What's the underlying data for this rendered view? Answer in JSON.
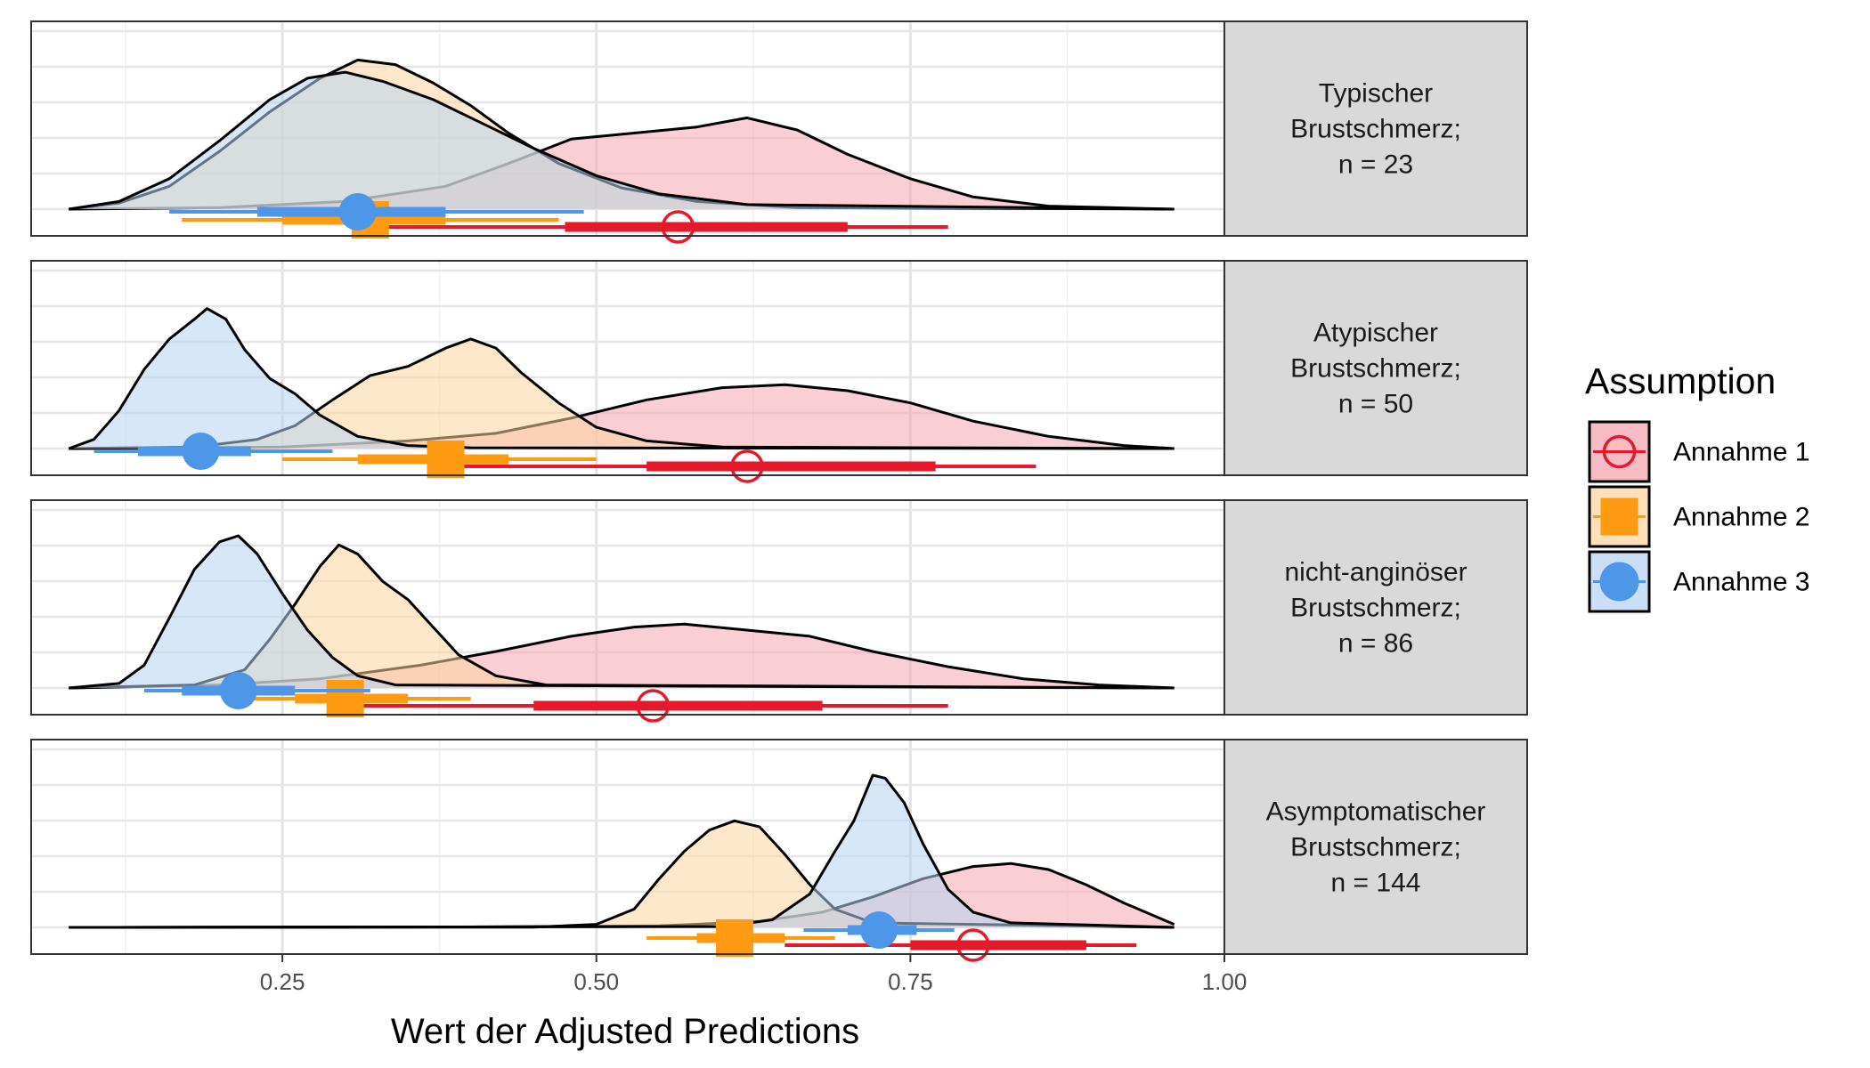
{
  "chart_data": {
    "type": "area",
    "subtype": "faceted half-eye density plot with point intervals",
    "xlabel": "Wert der Adjusted Predictions",
    "ylabel": "",
    "xlim": [
      0.05,
      1.0
    ],
    "x_ticks": [
      0.25,
      0.5,
      0.75,
      1.0
    ],
    "x_tick_labels": [
      "0.25",
      "0.50",
      "0.75",
      "1.00"
    ],
    "grid": true,
    "legend": {
      "title": "Assumption",
      "placement": "right",
      "entries": [
        {
          "label": "Annahme 1",
          "shape": "open-circle",
          "color": "#e41a2a",
          "fill": "#f4a6b0"
        },
        {
          "label": "Annahme 2",
          "shape": "square",
          "color": "#ff9a11",
          "fill": "#fdd6a0"
        },
        {
          "label": "Annahme 3",
          "shape": "circle",
          "color": "#4e96e8",
          "fill": "#b8d4f3"
        }
      ]
    },
    "facets": [
      {
        "label_lines": [
          "Typischer",
          "Brustschmerz;",
          "n = 23"
        ],
        "series": [
          {
            "name": "Annahme 1",
            "median": 0.565,
            "ci66": [
              0.475,
              0.7
            ],
            "ci95": [
              0.32,
              0.78
            ],
            "density": [
              [
                0.08,
                0
              ],
              [
                0.2,
                0.01
              ],
              [
                0.3,
                0.05
              ],
              [
                0.38,
                0.15
              ],
              [
                0.43,
                0.3
              ],
              [
                0.48,
                0.46
              ],
              [
                0.53,
                0.5
              ],
              [
                0.58,
                0.54
              ],
              [
                0.62,
                0.6
              ],
              [
                0.66,
                0.52
              ],
              [
                0.7,
                0.36
              ],
              [
                0.75,
                0.2
              ],
              [
                0.8,
                0.08
              ],
              [
                0.86,
                0.02
              ],
              [
                0.96,
                0
              ]
            ]
          },
          {
            "name": "Annahme 2",
            "median": 0.32,
            "ci66": [
              0.25,
              0.38
            ],
            "ci95": [
              0.17,
              0.47
            ],
            "density": [
              [
                0.08,
                0
              ],
              [
                0.12,
                0.04
              ],
              [
                0.16,
                0.15
              ],
              [
                0.2,
                0.38
              ],
              [
                0.24,
                0.64
              ],
              [
                0.28,
                0.86
              ],
              [
                0.31,
                0.98
              ],
              [
                0.34,
                0.95
              ],
              [
                0.37,
                0.83
              ],
              [
                0.4,
                0.68
              ],
              [
                0.43,
                0.5
              ],
              [
                0.47,
                0.3
              ],
              [
                0.52,
                0.14
              ],
              [
                0.58,
                0.05
              ],
              [
                0.66,
                0.01
              ],
              [
                0.96,
                0
              ]
            ]
          },
          {
            "name": "Annahme 3",
            "median": 0.31,
            "ci66": [
              0.23,
              0.38
            ],
            "ci95": [
              0.16,
              0.49
            ],
            "density": [
              [
                0.08,
                0
              ],
              [
                0.12,
                0.05
              ],
              [
                0.16,
                0.2
              ],
              [
                0.2,
                0.45
              ],
              [
                0.24,
                0.72
              ],
              [
                0.27,
                0.86
              ],
              [
                0.3,
                0.9
              ],
              [
                0.33,
                0.84
              ],
              [
                0.37,
                0.72
              ],
              [
                0.41,
                0.56
              ],
              [
                0.45,
                0.4
              ],
              [
                0.5,
                0.22
              ],
              [
                0.55,
                0.1
              ],
              [
                0.62,
                0.03
              ],
              [
                0.96,
                0
              ]
            ]
          }
        ]
      },
      {
        "label_lines": [
          "Atypischer",
          "Brustschmerz;",
          "n = 50"
        ],
        "series": [
          {
            "name": "Annahme 1",
            "median": 0.62,
            "ci66": [
              0.54,
              0.77
            ],
            "ci95": [
              0.37,
              0.85
            ],
            "density": [
              [
                0.08,
                0
              ],
              [
                0.25,
                0.01
              ],
              [
                0.35,
                0.05
              ],
              [
                0.42,
                0.1
              ],
              [
                0.48,
                0.2
              ],
              [
                0.54,
                0.32
              ],
              [
                0.6,
                0.4
              ],
              [
                0.65,
                0.42
              ],
              [
                0.7,
                0.38
              ],
              [
                0.75,
                0.3
              ],
              [
                0.8,
                0.18
              ],
              [
                0.86,
                0.08
              ],
              [
                0.92,
                0.02
              ],
              [
                0.96,
                0
              ]
            ]
          },
          {
            "name": "Annahme 2",
            "median": 0.38,
            "ci66": [
              0.31,
              0.43
            ],
            "ci95": [
              0.25,
              0.5
            ],
            "density": [
              [
                0.08,
                0
              ],
              [
                0.18,
                0.01
              ],
              [
                0.23,
                0.06
              ],
              [
                0.26,
                0.15
              ],
              [
                0.29,
                0.32
              ],
              [
                0.32,
                0.48
              ],
              [
                0.35,
                0.54
              ],
              [
                0.38,
                0.66
              ],
              [
                0.4,
                0.72
              ],
              [
                0.42,
                0.66
              ],
              [
                0.44,
                0.5
              ],
              [
                0.47,
                0.3
              ],
              [
                0.5,
                0.14
              ],
              [
                0.54,
                0.05
              ],
              [
                0.6,
                0.01
              ],
              [
                0.96,
                0
              ]
            ]
          },
          {
            "name": "Annahme 3",
            "median": 0.185,
            "ci66": [
              0.135,
              0.225
            ],
            "ci95": [
              0.1,
              0.29
            ],
            "density": [
              [
                0.08,
                0
              ],
              [
                0.1,
                0.06
              ],
              [
                0.12,
                0.25
              ],
              [
                0.14,
                0.52
              ],
              [
                0.16,
                0.72
              ],
              [
                0.18,
                0.85
              ],
              [
                0.19,
                0.92
              ],
              [
                0.205,
                0.85
              ],
              [
                0.22,
                0.65
              ],
              [
                0.24,
                0.46
              ],
              [
                0.26,
                0.36
              ],
              [
                0.28,
                0.22
              ],
              [
                0.31,
                0.08
              ],
              [
                0.35,
                0.02
              ],
              [
                0.4,
                0.005
              ],
              [
                0.96,
                0
              ]
            ]
          }
        ]
      },
      {
        "label_lines": [
          "nicht-anginöser",
          "Brustschmerz;",
          "n = 86"
        ],
        "series": [
          {
            "name": "Annahme 1",
            "median": 0.545,
            "ci66": [
              0.45,
              0.68
            ],
            "ci95": [
              0.3,
              0.78
            ],
            "density": [
              [
                0.08,
                0
              ],
              [
                0.2,
                0.02
              ],
              [
                0.28,
                0.06
              ],
              [
                0.36,
                0.15
              ],
              [
                0.42,
                0.24
              ],
              [
                0.48,
                0.34
              ],
              [
                0.53,
                0.4
              ],
              [
                0.57,
                0.42
              ],
              [
                0.62,
                0.38
              ],
              [
                0.67,
                0.34
              ],
              [
                0.72,
                0.24
              ],
              [
                0.78,
                0.14
              ],
              [
                0.84,
                0.06
              ],
              [
                0.9,
                0.02
              ],
              [
                0.96,
                0
              ]
            ]
          },
          {
            "name": "Annahme 2",
            "median": 0.3,
            "ci66": [
              0.26,
              0.35
            ],
            "ci95": [
              0.21,
              0.4
            ],
            "density": [
              [
                0.08,
                0
              ],
              [
                0.18,
                0.02
              ],
              [
                0.22,
                0.12
              ],
              [
                0.24,
                0.32
              ],
              [
                0.26,
                0.55
              ],
              [
                0.28,
                0.8
              ],
              [
                0.295,
                0.94
              ],
              [
                0.31,
                0.88
              ],
              [
                0.33,
                0.7
              ],
              [
                0.35,
                0.58
              ],
              [
                0.37,
                0.4
              ],
              [
                0.39,
                0.22
              ],
              [
                0.42,
                0.08
              ],
              [
                0.46,
                0.02
              ],
              [
                0.96,
                0
              ]
            ]
          },
          {
            "name": "Annahme 3",
            "median": 0.215,
            "ci66": [
              0.17,
              0.26
            ],
            "ci95": [
              0.14,
              0.32
            ],
            "density": [
              [
                0.08,
                0
              ],
              [
                0.12,
                0.03
              ],
              [
                0.14,
                0.15
              ],
              [
                0.16,
                0.46
              ],
              [
                0.18,
                0.78
              ],
              [
                0.2,
                0.96
              ],
              [
                0.215,
                1.0
              ],
              [
                0.23,
                0.88
              ],
              [
                0.25,
                0.62
              ],
              [
                0.27,
                0.38
              ],
              [
                0.29,
                0.2
              ],
              [
                0.31,
                0.08
              ],
              [
                0.34,
                0.02
              ],
              [
                0.96,
                0
              ]
            ]
          }
        ]
      },
      {
        "label_lines": [
          "Asymptomatischer",
          "Brustschmerz;",
          "n = 144"
        ],
        "series": [
          {
            "name": "Annahme 1",
            "median": 0.8,
            "ci66": [
              0.75,
              0.89
            ],
            "ci95": [
              0.65,
              0.93
            ],
            "density": [
              [
                0.08,
                0
              ],
              [
                0.4,
                0.003
              ],
              [
                0.55,
                0.01
              ],
              [
                0.63,
                0.04
              ],
              [
                0.68,
                0.1
              ],
              [
                0.72,
                0.2
              ],
              [
                0.76,
                0.32
              ],
              [
                0.8,
                0.4
              ],
              [
                0.83,
                0.42
              ],
              [
                0.86,
                0.38
              ],
              [
                0.89,
                0.28
              ],
              [
                0.92,
                0.16
              ],
              [
                0.96,
                0.02
              ]
            ]
          },
          {
            "name": "Annahme 2",
            "median": 0.61,
            "ci66": [
              0.58,
              0.65
            ],
            "ci95": [
              0.54,
              0.69
            ],
            "density": [
              [
                0.08,
                0
              ],
              [
                0.45,
                0.002
              ],
              [
                0.5,
                0.02
              ],
              [
                0.53,
                0.12
              ],
              [
                0.55,
                0.32
              ],
              [
                0.57,
                0.5
              ],
              [
                0.59,
                0.64
              ],
              [
                0.61,
                0.7
              ],
              [
                0.63,
                0.66
              ],
              [
                0.65,
                0.48
              ],
              [
                0.67,
                0.28
              ],
              [
                0.69,
                0.12
              ],
              [
                0.72,
                0.03
              ],
              [
                0.96,
                0
              ]
            ]
          },
          {
            "name": "Annahme 3",
            "median": 0.725,
            "ci66": [
              0.7,
              0.755
            ],
            "ci95": [
              0.665,
              0.785
            ],
            "density": [
              [
                0.08,
                0
              ],
              [
                0.6,
                0.005
              ],
              [
                0.64,
                0.05
              ],
              [
                0.67,
                0.22
              ],
              [
                0.69,
                0.5
              ],
              [
                0.705,
                0.7
              ],
              [
                0.72,
                1.0
              ],
              [
                0.73,
                0.98
              ],
              [
                0.745,
                0.82
              ],
              [
                0.76,
                0.55
              ],
              [
                0.78,
                0.25
              ],
              [
                0.8,
                0.1
              ],
              [
                0.83,
                0.03
              ],
              [
                0.96,
                0
              ]
            ]
          }
        ]
      }
    ]
  }
}
